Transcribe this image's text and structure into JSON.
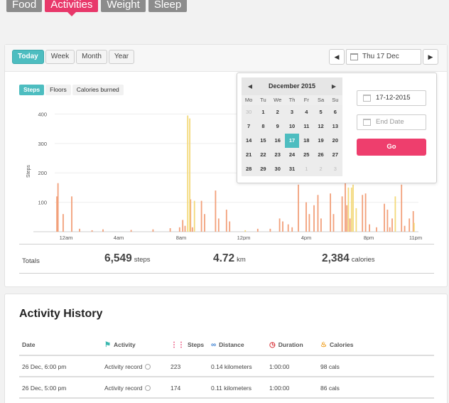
{
  "top_tabs": [
    {
      "label": "Food",
      "active": false
    },
    {
      "label": "Activities",
      "active": true
    },
    {
      "label": "Weight",
      "active": false
    },
    {
      "label": "Sleep",
      "active": false
    }
  ],
  "toolbar": {
    "range_buttons": [
      "Today",
      "Week",
      "Month",
      "Year"
    ],
    "active_range": "Today",
    "current_date": "Thu 17 Dec",
    "prev_icon": "triangle-left-icon",
    "next_icon": "triangle-right-icon"
  },
  "metric_tabs": [
    "Steps",
    "Floors",
    "Calories burned"
  ],
  "active_metric": "Steps",
  "colors": {
    "accent_teal": "#4dbdc0",
    "accent_pink": "#ee3e6d",
    "bar_orange": "#f2a07a",
    "bar_yellow": "#f3d97a"
  },
  "chart_data": {
    "type": "bar",
    "ylabel": "Steps",
    "ylim": [
      0,
      430
    ],
    "yticks": [
      100,
      200,
      300,
      400
    ],
    "x_ticks": [
      "12am",
      "4am",
      "8am",
      "12pm",
      "4pm",
      "8pm",
      "11pm"
    ],
    "series": [
      {
        "color": "#f2a07a",
        "points": [
          [
            0.05,
            120
          ],
          [
            0.12,
            165
          ],
          [
            0.45,
            60
          ],
          [
            1.0,
            120
          ],
          [
            1.5,
            10
          ],
          [
            2.3,
            5
          ],
          [
            3.0,
            8
          ],
          [
            4.8,
            6
          ],
          [
            6.2,
            8
          ],
          [
            7.3,
            12
          ],
          [
            7.9,
            15
          ],
          [
            8.1,
            40
          ],
          [
            8.25,
            20
          ],
          [
            8.6,
            110
          ],
          [
            8.72,
            15
          ],
          [
            9.3,
            105
          ],
          [
            9.5,
            60
          ],
          [
            10.2,
            140
          ],
          [
            10.4,
            45
          ],
          [
            10.9,
            75
          ],
          [
            11.1,
            35
          ],
          [
            12.9,
            10
          ],
          [
            13.7,
            10
          ],
          [
            14.3,
            45
          ],
          [
            14.5,
            35
          ],
          [
            14.85,
            25
          ],
          [
            15.1,
            15
          ],
          [
            15.5,
            160
          ],
          [
            16.0,
            100
          ],
          [
            16.2,
            60
          ],
          [
            16.5,
            90
          ],
          [
            16.75,
            125
          ],
          [
            16.95,
            45
          ],
          [
            17.55,
            130
          ],
          [
            17.75,
            60
          ],
          [
            18.3,
            120
          ],
          [
            18.5,
            180
          ],
          [
            18.6,
            90
          ],
          [
            18.8,
            45
          ],
          [
            19.6,
            125
          ],
          [
            19.8,
            130
          ],
          [
            20.05,
            25
          ],
          [
            20.5,
            15
          ],
          [
            21.0,
            95
          ],
          [
            21.2,
            75
          ],
          [
            21.35,
            15
          ],
          [
            21.5,
            45
          ],
          [
            22.1,
            160
          ],
          [
            22.3,
            20
          ],
          [
            22.6,
            45
          ],
          [
            22.85,
            70
          ]
        ]
      },
      {
        "color": "#f3d97a",
        "points": [
          [
            8.42,
            395
          ],
          [
            8.55,
            385
          ],
          [
            8.85,
            105
          ],
          [
            12.1,
            5
          ],
          [
            18.7,
            150
          ],
          [
            18.9,
            150
          ],
          [
            19.0,
            160
          ],
          [
            19.2,
            80
          ],
          [
            21.7,
            120
          ],
          [
            22.9,
            30
          ]
        ]
      }
    ]
  },
  "totals": {
    "label": "Totals",
    "steps": {
      "value": "6,549",
      "unit": "steps"
    },
    "distance": {
      "value": "4.72",
      "unit": "km"
    },
    "calories": {
      "value": "2,384",
      "unit": "calories"
    }
  },
  "calendar": {
    "month_label": "December 2015",
    "dow": [
      "Mo",
      "Tu",
      "We",
      "Th",
      "Fr",
      "Sa",
      "Su"
    ],
    "days": [
      {
        "d": "30",
        "muted": true
      },
      {
        "d": "1"
      },
      {
        "d": "2"
      },
      {
        "d": "3"
      },
      {
        "d": "4"
      },
      {
        "d": "5"
      },
      {
        "d": "6"
      },
      {
        "d": "7"
      },
      {
        "d": "8"
      },
      {
        "d": "9"
      },
      {
        "d": "10"
      },
      {
        "d": "11"
      },
      {
        "d": "12"
      },
      {
        "d": "13"
      },
      {
        "d": "14"
      },
      {
        "d": "15"
      },
      {
        "d": "16"
      },
      {
        "d": "17",
        "selected": true
      },
      {
        "d": "18"
      },
      {
        "d": "19"
      },
      {
        "d": "20"
      },
      {
        "d": "21"
      },
      {
        "d": "22"
      },
      {
        "d": "23"
      },
      {
        "d": "24"
      },
      {
        "d": "25"
      },
      {
        "d": "26"
      },
      {
        "d": "27"
      },
      {
        "d": "28"
      },
      {
        "d": "29"
      },
      {
        "d": "30"
      },
      {
        "d": "31"
      },
      {
        "d": "1",
        "muted": true
      },
      {
        "d": "2",
        "muted": true
      },
      {
        "d": "3",
        "muted": true
      }
    ],
    "start_date_value": "17-12-2015",
    "end_date_placeholder": "End Date",
    "go_label": "Go"
  },
  "history": {
    "title": "Activity History",
    "columns": {
      "date": "Date",
      "activity": "Activity",
      "steps": "Steps",
      "distance": "Distance",
      "duration": "Duration",
      "calories": "Calories"
    },
    "rows": [
      {
        "date": "26 Dec, 6:00 pm",
        "activity": "Activity record",
        "steps": "223",
        "distance": "0.14 kilometers",
        "duration": "1:00:00",
        "calories": "98 cals"
      },
      {
        "date": "26 Dec, 5:00 pm",
        "activity": "Activity record",
        "steps": "174",
        "distance": "0.11 kilometers",
        "duration": "1:00:00",
        "calories": "86 cals"
      }
    ]
  }
}
